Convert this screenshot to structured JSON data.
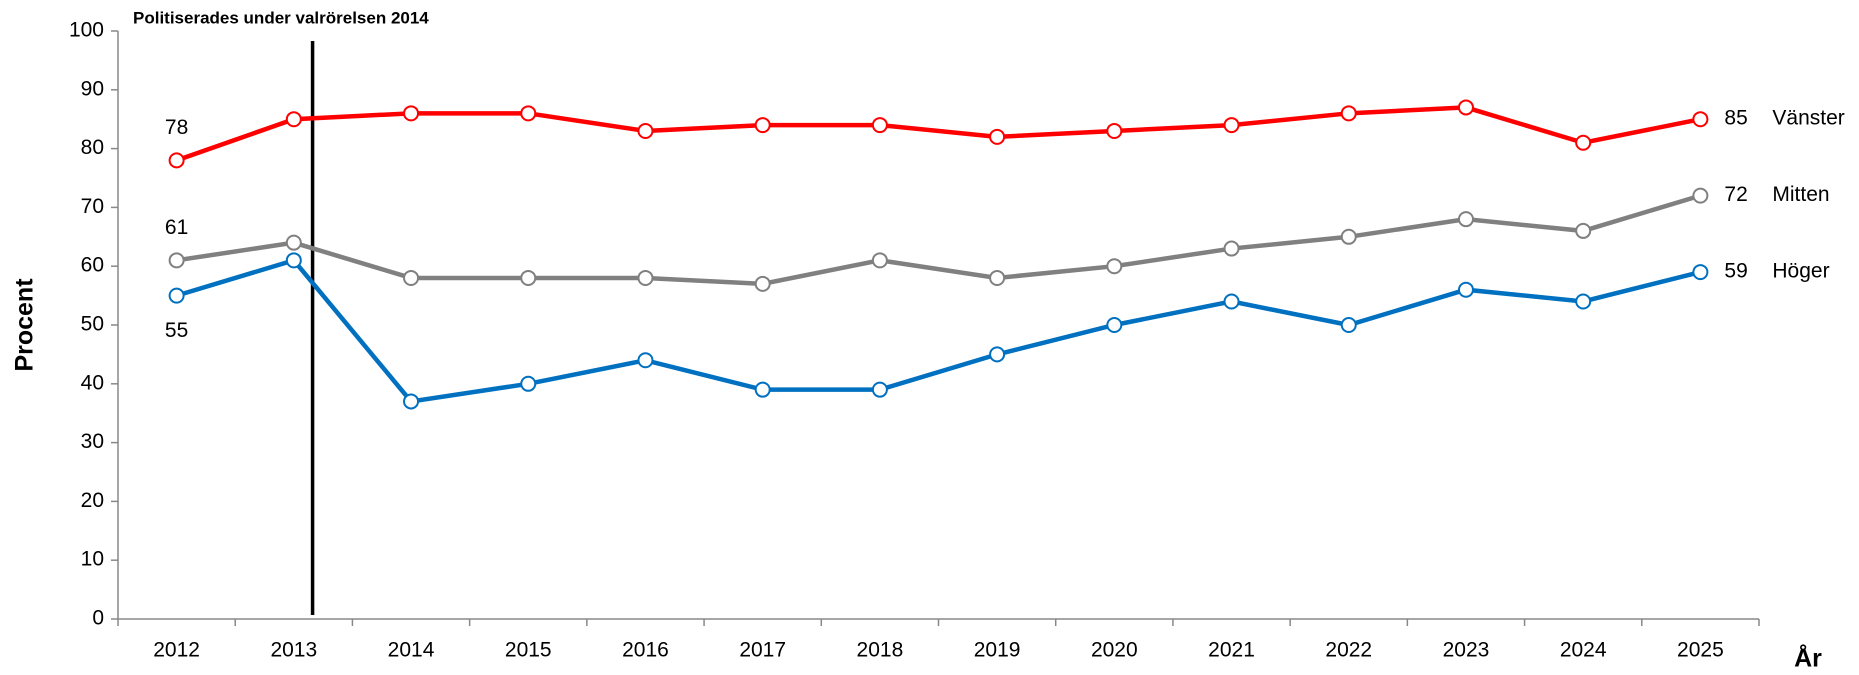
{
  "chart_data": {
    "type": "line",
    "annotation": "Politiserades under valrörelsen 2014",
    "y_label": "Procent",
    "x_label": "År",
    "categories": [
      "2012",
      "2013",
      "2014",
      "2015",
      "2016",
      "2017",
      "2018",
      "2019",
      "2020",
      "2021",
      "2022",
      "2023",
      "2024",
      "2025"
    ],
    "series": [
      {
        "name": "Vänster",
        "color": "#ff0000",
        "values": [
          78,
          85,
          86,
          86,
          83,
          84,
          84,
          82,
          83,
          84,
          86,
          87,
          81,
          85
        ]
      },
      {
        "name": "Mitten",
        "color": "#808080",
        "values": [
          61,
          64,
          58,
          58,
          58,
          57,
          61,
          58,
          60,
          63,
          65,
          68,
          66,
          72
        ]
      },
      {
        "name": "Höger",
        "color": "#0070c0",
        "values": [
          55,
          61,
          37,
          40,
          44,
          39,
          39,
          45,
          50,
          54,
          50,
          56,
          54,
          59
        ]
      }
    ],
    "ylim": [
      0,
      100
    ],
    "yticks": [
      0,
      10,
      20,
      30,
      40,
      50,
      60,
      70,
      80,
      90,
      100
    ],
    "grid": false
  }
}
